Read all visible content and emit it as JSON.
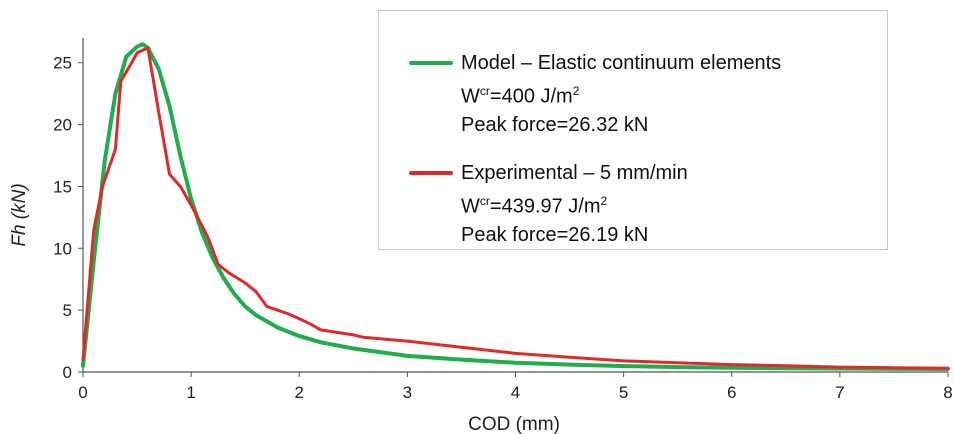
{
  "chart_data": {
    "type": "line",
    "xlabel": "COD (mm)",
    "ylabel": "Fh (kN)",
    "xlim": [
      0,
      8
    ],
    "ylim": [
      0,
      27
    ],
    "x_ticks": [
      "0",
      "1",
      "2",
      "3",
      "4",
      "5",
      "6",
      "7",
      "8"
    ],
    "y_ticks": [
      "0",
      "5",
      "10",
      "15",
      "20",
      "25"
    ],
    "grid": false,
    "legend_position": "top-right",
    "series": [
      {
        "name": "Model – Elastic continuum elements",
        "color": "#1fae4b",
        "legend_lines": [
          {
            "prefix": "W",
            "sup": "cr",
            "suffix": "=400 J/m",
            "sup2": "2"
          },
          {
            "prefix": "Peak force=26.32 kN",
            "sup": "",
            "suffix": "",
            "sup2": ""
          }
        ],
        "x": [
          0,
          0.1,
          0.2,
          0.3,
          0.4,
          0.5,
          0.55,
          0.6,
          0.7,
          0.8,
          0.9,
          1.0,
          1.1,
          1.2,
          1.3,
          1.4,
          1.5,
          1.6,
          1.8,
          2.0,
          2.2,
          2.5,
          3.0,
          3.5,
          4.0,
          4.5,
          5.0,
          5.5,
          6.0,
          6.5,
          7.0,
          7.5,
          8.0
        ],
        "y": [
          0.5,
          9.0,
          17.0,
          22.5,
          25.5,
          26.3,
          26.5,
          26.2,
          24.5,
          21.5,
          17.5,
          14.0,
          11.3,
          9.2,
          7.6,
          6.3,
          5.3,
          4.6,
          3.6,
          2.9,
          2.4,
          1.9,
          1.3,
          1.0,
          0.75,
          0.6,
          0.48,
          0.4,
          0.35,
          0.3,
          0.28,
          0.26,
          0.25
        ]
      },
      {
        "name": "Experimental – 5 mm/min",
        "color": "#e02a2a",
        "legend_lines": [
          {
            "prefix": "W",
            "sup": "cr",
            "suffix": "=439.97 J/m",
            "sup2": "2"
          },
          {
            "prefix": "Peak force=26.19 kN",
            "sup": "",
            "suffix": "",
            "sup2": ""
          }
        ],
        "x": [
          0,
          0.1,
          0.18,
          0.3,
          0.35,
          0.45,
          0.5,
          0.6,
          0.7,
          0.8,
          0.9,
          1.0,
          1.15,
          1.25,
          1.35,
          1.5,
          1.6,
          1.7,
          1.9,
          2.0,
          2.1,
          2.2,
          2.5,
          2.6,
          3.0,
          3.5,
          4.0,
          4.5,
          5.0,
          5.5,
          6.0,
          6.5,
          7.0,
          7.5,
          8.0
        ],
        "y": [
          1.0,
          11.5,
          15.0,
          18.0,
          23.5,
          25.0,
          25.8,
          26.2,
          21.0,
          16.0,
          15.0,
          13.5,
          11.0,
          8.7,
          8.0,
          7.2,
          6.5,
          5.3,
          4.7,
          4.3,
          3.9,
          3.4,
          3.0,
          2.8,
          2.5,
          2.0,
          1.5,
          1.2,
          0.9,
          0.75,
          0.6,
          0.5,
          0.4,
          0.35,
          0.3
        ]
      }
    ]
  }
}
